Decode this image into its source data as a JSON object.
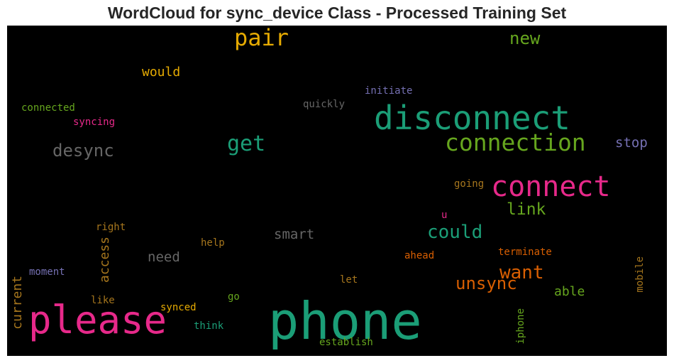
{
  "chart_data": {
    "type": "wordcloud",
    "title": "WordCloud for sync_device Class - Processed Training Set",
    "background": "#000000",
    "palette": "Dark2",
    "words": [
      {
        "text": "phone",
        "color": "#1b9e77"
      },
      {
        "text": "please",
        "color": "#e7298a"
      },
      {
        "text": "disconnect",
        "color": "#1b9e77"
      },
      {
        "text": "connect",
        "color": "#e7298a"
      },
      {
        "text": "connection",
        "color": "#66a61e"
      },
      {
        "text": "pair",
        "color": "#e6ab02"
      },
      {
        "text": "get",
        "color": "#1b9e77"
      },
      {
        "text": "desync",
        "color": "#666666"
      },
      {
        "text": "could",
        "color": "#1b9e77"
      },
      {
        "text": "want",
        "color": "#d95f02"
      },
      {
        "text": "unsync",
        "color": "#d95f02"
      },
      {
        "text": "link",
        "color": "#66a61e"
      },
      {
        "text": "new",
        "color": "#66a61e"
      },
      {
        "text": "stop",
        "color": "#7570b3"
      },
      {
        "text": "smart",
        "color": "#666666"
      },
      {
        "text": "need",
        "color": "#666666"
      },
      {
        "text": "access",
        "color": "#a6761d"
      },
      {
        "text": "current",
        "color": "#a6761d"
      },
      {
        "text": "would",
        "color": "#e6ab02"
      },
      {
        "text": "able",
        "color": "#66a61e"
      },
      {
        "text": "terminate",
        "color": "#d95f02"
      },
      {
        "text": "quickly",
        "color": "#666666"
      },
      {
        "text": "initiate",
        "color": "#7570b3"
      },
      {
        "text": "connected",
        "color": "#66a61e"
      },
      {
        "text": "syncing",
        "color": "#e7298a"
      },
      {
        "text": "going",
        "color": "#a6761d"
      },
      {
        "text": "u",
        "color": "#e7298a"
      },
      {
        "text": "right",
        "color": "#a6761d"
      },
      {
        "text": "help",
        "color": "#a6761d"
      },
      {
        "text": "ahead",
        "color": "#d95f02"
      },
      {
        "text": "moment",
        "color": "#7570b3"
      },
      {
        "text": "let",
        "color": "#a6761d"
      },
      {
        "text": "mobile",
        "color": "#a6761d"
      },
      {
        "text": "like",
        "color": "#a6761d"
      },
      {
        "text": "go",
        "color": "#66a61e"
      },
      {
        "text": "synced",
        "color": "#e6ab02"
      },
      {
        "text": "think",
        "color": "#1b9e77"
      },
      {
        "text": "establish",
        "color": "#66a61e"
      },
      {
        "text": "iphone",
        "color": "#66a61e"
      }
    ]
  }
}
